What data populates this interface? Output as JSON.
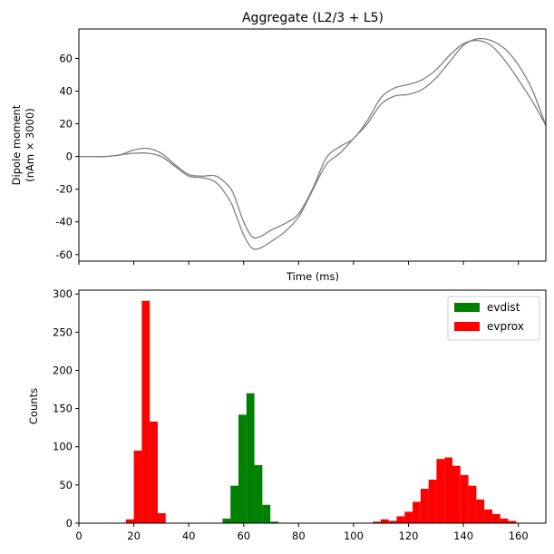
{
  "chart_data": [
    {
      "type": "line",
      "title": "Aggregate (L2/3 + L5)",
      "xlabel": "Time (ms)",
      "ylabel_lines": [
        "Dipole moment",
        "(nAm × 3000)"
      ],
      "xlim": [
        0,
        170
      ],
      "ylim": [
        -64,
        78
      ],
      "yticks": [
        -60,
        -40,
        -20,
        0,
        20,
        40,
        60
      ],
      "xticks": [
        0,
        20,
        40,
        60,
        80,
        100,
        120,
        140,
        160
      ],
      "show_xtick_labels": false,
      "grid": false,
      "line_color": "#808080",
      "series": [
        {
          "x": [
            0,
            5,
            10,
            15,
            20,
            25,
            30,
            35,
            40,
            45,
            50,
            55,
            57,
            60,
            63,
            66,
            70,
            75,
            80,
            85,
            90,
            95,
            100,
            105,
            110,
            115,
            120,
            125,
            130,
            135,
            140,
            145,
            150,
            155,
            160,
            165,
            170
          ],
          "y": [
            0,
            0,
            0,
            1,
            4,
            5,
            2,
            -5,
            -11,
            -12,
            -12,
            -19,
            -26,
            -40,
            -49,
            -49,
            -45,
            -41,
            -35,
            -20,
            -1,
            6,
            11,
            22,
            36,
            42,
            44,
            47,
            53,
            62,
            69,
            71,
            68,
            59,
            47,
            34,
            19
          ]
        },
        {
          "x": [
            0,
            5,
            10,
            15,
            20,
            25,
            30,
            35,
            40,
            45,
            50,
            55,
            57,
            60,
            63,
            66,
            70,
            75,
            80,
            85,
            90,
            95,
            100,
            105,
            110,
            115,
            120,
            125,
            130,
            135,
            140,
            145,
            150,
            155,
            160,
            165,
            170
          ],
          "y": [
            0,
            0,
            0,
            1,
            2,
            2,
            0,
            -6,
            -12,
            -13,
            -16,
            -27,
            -35,
            -48,
            -56,
            -56,
            -52,
            -46,
            -37,
            -21,
            -5,
            2,
            11,
            20,
            32,
            37,
            38,
            41,
            48,
            58,
            68,
            72,
            71,
            66,
            56,
            41,
            19
          ]
        }
      ]
    },
    {
      "type": "bar",
      "title": "",
      "xlabel": "",
      "ylabel": "Counts",
      "xlim": [
        0,
        170
      ],
      "ylim": [
        0,
        305
      ],
      "yticks": [
        0,
        50,
        100,
        150,
        200,
        250,
        300
      ],
      "xticks": [
        0,
        20,
        40,
        60,
        80,
        100,
        120,
        140,
        160
      ],
      "legend_position": "top-right",
      "bin_width": 2.9,
      "series": [
        {
          "name": "evdist",
          "color": "#008000",
          "bins": [
            {
              "x": 52.3,
              "count": 6
            },
            {
              "x": 55.2,
              "count": 49
            },
            {
              "x": 58.1,
              "count": 142
            },
            {
              "x": 61.0,
              "count": 170
            },
            {
              "x": 63.9,
              "count": 76
            },
            {
              "x": 66.8,
              "count": 24
            },
            {
              "x": 69.7,
              "count": 2
            }
          ]
        },
        {
          "name": "evprox",
          "color": "#ff0000",
          "bins": [
            {
              "x": 17.1,
              "count": 5
            },
            {
              "x": 20.0,
              "count": 95
            },
            {
              "x": 22.9,
              "count": 291
            },
            {
              "x": 25.8,
              "count": 133
            },
            {
              "x": 28.7,
              "count": 13
            },
            {
              "x": 107.0,
              "count": 2
            },
            {
              "x": 109.9,
              "count": 5
            },
            {
              "x": 112.8,
              "count": 3
            },
            {
              "x": 115.7,
              "count": 9
            },
            {
              "x": 118.6,
              "count": 15
            },
            {
              "x": 121.5,
              "count": 28
            },
            {
              "x": 124.4,
              "count": 45
            },
            {
              "x": 127.3,
              "count": 57
            },
            {
              "x": 130.2,
              "count": 84
            },
            {
              "x": 133.1,
              "count": 86
            },
            {
              "x": 136.0,
              "count": 75
            },
            {
              "x": 138.9,
              "count": 63
            },
            {
              "x": 141.8,
              "count": 49
            },
            {
              "x": 144.7,
              "count": 31
            },
            {
              "x": 147.6,
              "count": 18
            },
            {
              "x": 150.5,
              "count": 12
            },
            {
              "x": 153.4,
              "count": 6
            },
            {
              "x": 156.3,
              "count": 3
            }
          ]
        }
      ]
    }
  ]
}
